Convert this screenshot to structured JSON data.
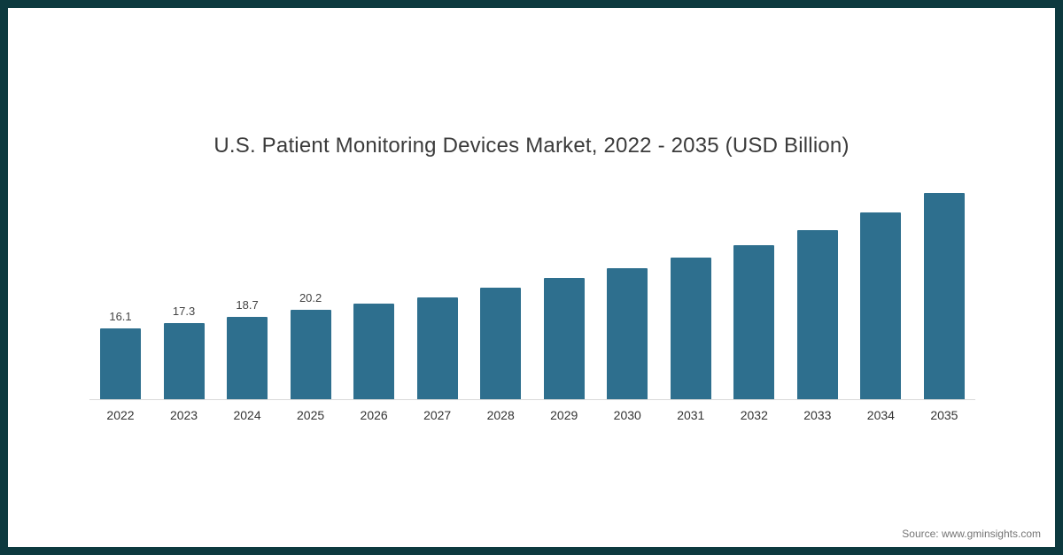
{
  "chart_data": {
    "type": "bar",
    "title": "U.S. Patient Monitoring Devices Market, 2022 - 2035 (USD Billion)",
    "categories": [
      "2022",
      "2023",
      "2024",
      "2025",
      "2026",
      "2027",
      "2028",
      "2029",
      "2030",
      "2031",
      "2032",
      "2033",
      "2034",
      "2035"
    ],
    "values": [
      16.1,
      17.3,
      18.7,
      20.2,
      21.7,
      23.1,
      25.2,
      27.4,
      29.6,
      32.0,
      34.8,
      38.2,
      42.3,
      46.7
    ],
    "data_labels_shown": [
      "16.1",
      "17.3",
      "18.7",
      "20.2",
      "",
      "",
      "",
      "",
      "",
      "",
      "",
      "",
      "",
      ""
    ],
    "bar_color": "#2e6f8e",
    "ylim": [
      0,
      48
    ],
    "grid": false,
    "legend": false,
    "xlabel": "",
    "ylabel": ""
  },
  "footer": {
    "source_text": "Source: www.gminsights.com"
  },
  "frame": {
    "border_color": "#0d3a3f"
  }
}
